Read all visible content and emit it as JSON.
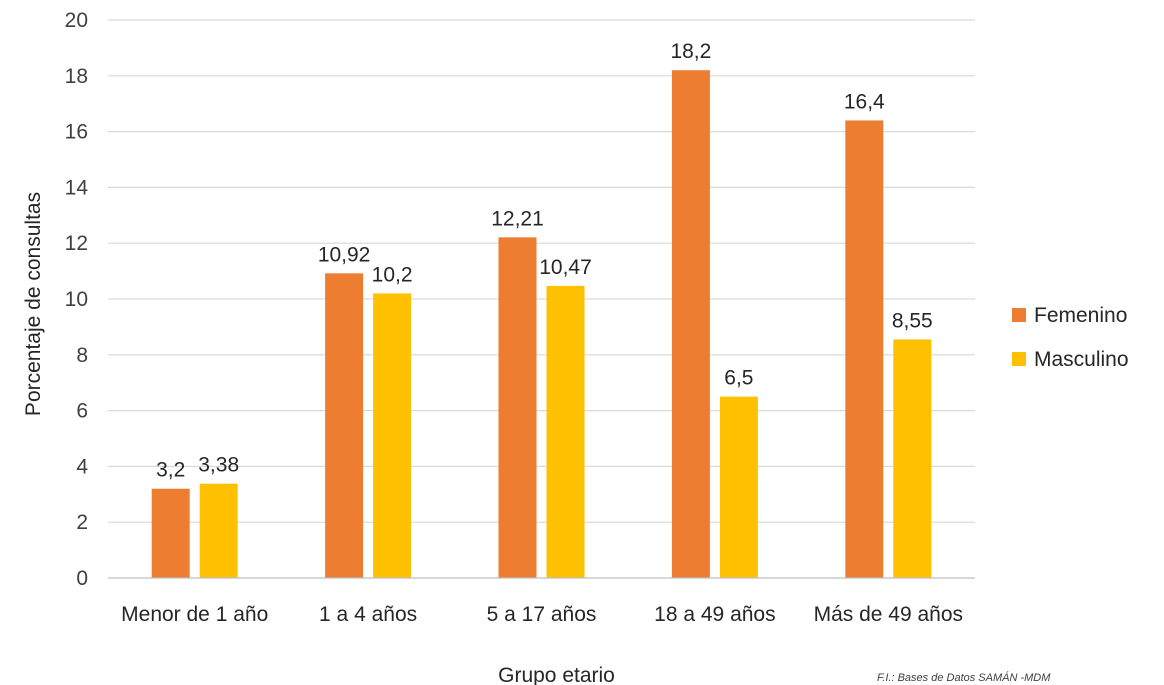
{
  "chart_data": {
    "type": "bar",
    "categories": [
      "Menor de 1 año",
      "1  a 4 años",
      "5 a 17 años",
      "18 a 49 años",
      "Más de 49 años"
    ],
    "series": [
      {
        "name": "Femenino",
        "values": [
          3.2,
          10.92,
          12.21,
          18.2,
          16.4
        ],
        "labels": [
          "3,2",
          "10,92",
          "12,21",
          "18,2",
          "16,4"
        ],
        "color": "#ED7D31"
      },
      {
        "name": "Masculino",
        "values": [
          3.38,
          10.2,
          10.47,
          6.5,
          8.55
        ],
        "labels": [
          "3,38",
          "10,2",
          "10,47",
          "6,5",
          "8,55"
        ],
        "color": "#FFC000"
      }
    ],
    "xlabel": "Grupo etario",
    "ylabel": "Porcentaje de consultas",
    "ylim": [
      0,
      20
    ],
    "yticks": [
      0,
      2,
      4,
      6,
      8,
      10,
      12,
      14,
      16,
      18,
      20
    ],
    "grid": true,
    "legend_position": "right",
    "source": "F.I.: Bases de Datos SAMÁN -MDM"
  }
}
